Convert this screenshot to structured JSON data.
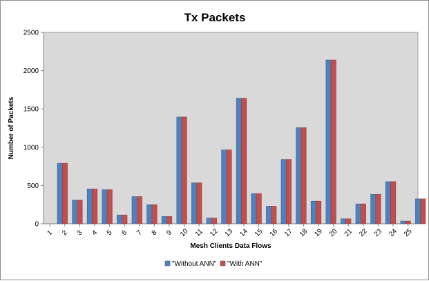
{
  "chart_data": {
    "type": "bar",
    "title": "Tx Packets",
    "xlabel": "Mesh Clients Data Flows",
    "ylabel": "Number of Packets",
    "ylim": [
      0,
      2500
    ],
    "yticks": [
      0,
      500,
      1000,
      1500,
      2000,
      2500
    ],
    "grid": false,
    "legend_position": "bottom",
    "categories": [
      "1",
      "2",
      "3",
      "4",
      "5",
      "6",
      "7",
      "8",
      "9",
      "10",
      "11",
      "12",
      "13",
      "14",
      "15",
      "16",
      "17",
      "18",
      "19",
      "20",
      "21",
      "22",
      "23",
      "24",
      "25"
    ],
    "series": [
      {
        "name": "\"Without ANN\"",
        "color": "#4f81bd",
        "values": [
          790,
          310,
          455,
          445,
          115,
          355,
          250,
          95,
          1395,
          535,
          75,
          965,
          1640,
          395,
          230,
          840,
          1255,
          295,
          2140,
          65,
          260,
          385,
          550,
          35,
          325
        ]
      },
      {
        "name": "\"With ANN\"",
        "color": "#c0504d",
        "values": [
          790,
          310,
          455,
          445,
          115,
          355,
          250,
          95,
          1395,
          535,
          75,
          965,
          1640,
          395,
          230,
          840,
          1255,
          295,
          2140,
          65,
          260,
          385,
          550,
          35,
          325
        ]
      }
    ],
    "plot_background": "#d9d9d9"
  }
}
